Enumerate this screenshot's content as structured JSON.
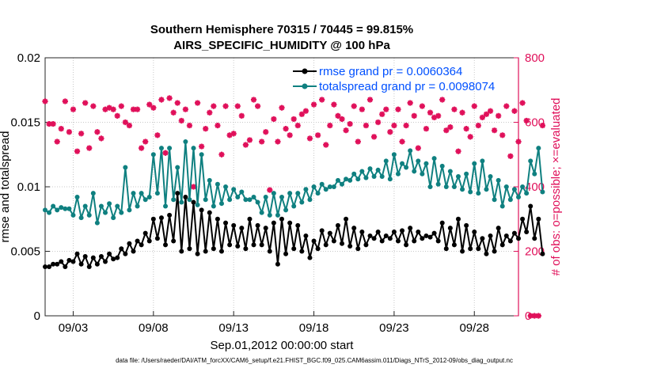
{
  "chart_data": {
    "type": "line",
    "title": "Southern Hemisphere 70315 / 70445 = 99.815%",
    "subtitle": "AIRS_SPECIFIC_HUMIDITY @ 100 hPa",
    "xlabel": "Sep.01,2012 00:00:00 start",
    "ylabel": "rmse and totalspread",
    "ylabel_right": "# of obs: o=possible; ×=evaluated",
    "footer": "data file: /Users/raeder/DAI/ATM_forcXX/CAM6_setup/f.e21.FHIST_BGC.f09_025.CAM6assim.011/Diags_NTrS_2012-09/obs_diag_output.nc",
    "xlim": [
      1.25,
      30.75
    ],
    "ylim": [
      0,
      0.02
    ],
    "ylim_right": [
      0,
      800
    ],
    "x_ticks": [
      3,
      8,
      13,
      18,
      23,
      28
    ],
    "x_tick_labels": [
      "09/03",
      "09/08",
      "09/13",
      "09/18",
      "09/23",
      "09/28"
    ],
    "y_ticks": [
      0,
      0.005,
      0.01,
      0.015,
      0.02
    ],
    "y_tick_labels": [
      "0",
      "0.005",
      "0.01",
      "0.015",
      "0.02"
    ],
    "y_right_ticks": [
      0,
      200,
      400,
      600,
      800
    ],
    "y_right_tick_labels": [
      "0",
      "200",
      "400",
      "600",
      "800"
    ],
    "x_start": 1.25,
    "x_step": 0.25,
    "series": [
      {
        "name": "rmse grand pr = 0.0060364",
        "color": "#000000",
        "values": [
          0.0038,
          0.0038,
          0.004,
          0.004,
          0.0042,
          0.0038,
          0.0043,
          0.0042,
          0.0048,
          0.004,
          0.0046,
          0.0038,
          0.0045,
          0.004,
          0.0046,
          0.0042,
          0.0048,
          0.0044,
          0.0045,
          0.0052,
          0.0048,
          0.0056,
          0.005,
          0.0058,
          0.0055,
          0.0064,
          0.0058,
          0.0075,
          0.006,
          0.0076,
          0.0055,
          0.0078,
          0.0058,
          0.0095,
          0.005,
          0.0092,
          0.0052,
          0.0088,
          0.0048,
          0.0082,
          0.005,
          0.008,
          0.0052,
          0.0075,
          0.005,
          0.0072,
          0.0055,
          0.007,
          0.0054,
          0.0068,
          0.0052,
          0.0075,
          0.0055,
          0.007,
          0.0055,
          0.0068,
          0.005,
          0.0072,
          0.004,
          0.0075,
          0.0048,
          0.0072,
          0.0052,
          0.007,
          0.005,
          0.0062,
          0.0045,
          0.0058,
          0.0052,
          0.0066,
          0.0055,
          0.0064,
          0.0058,
          0.007,
          0.0056,
          0.0075,
          0.0054,
          0.0068,
          0.0052,
          0.0065,
          0.0055,
          0.0062,
          0.006,
          0.0065,
          0.0058,
          0.0062,
          0.006,
          0.0065,
          0.0058,
          0.0066,
          0.0055,
          0.0068,
          0.0058,
          0.0065,
          0.006,
          0.0062,
          0.0061,
          0.0064,
          0.0058,
          0.0072,
          0.0052,
          0.0068,
          0.0055,
          0.0075,
          0.005,
          0.007,
          0.0052,
          0.0065,
          0.0052,
          0.006,
          0.0048,
          0.0062,
          0.005,
          0.0068,
          0.0055,
          0.0062,
          0.0058,
          0.0064,
          0.006,
          0.0075,
          0.0065,
          0.0085,
          0.006,
          0.0075,
          0.0048
        ]
      },
      {
        "name": "totalspread grand pr = 0.0098074",
        "color": "#0f8080",
        "values": [
          0.0082,
          0.008,
          0.0085,
          0.0082,
          0.0084,
          0.0083,
          0.0083,
          0.0078,
          0.0092,
          0.0076,
          0.0085,
          0.0078,
          0.0095,
          0.0072,
          0.0085,
          0.008,
          0.0087,
          0.0076,
          0.0085,
          0.008,
          0.0115,
          0.0082,
          0.0095,
          0.0085,
          0.0095,
          0.009,
          0.0092,
          0.0125,
          0.0095,
          0.013,
          0.0085,
          0.013,
          0.009,
          0.0115,
          0.0088,
          0.0135,
          0.009,
          0.013,
          0.0086,
          0.0125,
          0.009,
          0.0105,
          0.0085,
          0.0102,
          0.0087,
          0.01,
          0.009,
          0.0098,
          0.0092,
          0.0096,
          0.009,
          0.009,
          0.0092,
          0.0088,
          0.008,
          0.0092,
          0.0078,
          0.0095,
          0.0078,
          0.0092,
          0.0082,
          0.0095,
          0.0085,
          0.0095,
          0.0088,
          0.0098,
          0.009,
          0.01,
          0.0095,
          0.0102,
          0.0098,
          0.01,
          0.01,
          0.0105,
          0.0102,
          0.0106,
          0.0105,
          0.011,
          0.0106,
          0.0112,
          0.0107,
          0.0114,
          0.0108,
          0.0113,
          0.0108,
          0.012,
          0.0106,
          0.0125,
          0.011,
          0.0118,
          0.0115,
          0.0128,
          0.0112,
          0.012,
          0.011,
          0.0118,
          0.01,
          0.0122,
          0.0102,
          0.0116,
          0.01,
          0.0112,
          0.01,
          0.0108,
          0.0098,
          0.011,
          0.0096,
          0.0118,
          0.0095,
          0.012,
          0.0098,
          0.0108,
          0.009,
          0.0105,
          0.0085,
          0.01,
          0.009,
          0.0098,
          0.0092,
          0.01,
          0.0095,
          0.012,
          0.011,
          0.013,
          0.0096
        ]
      }
    ],
    "obs_evaluated": {
      "name": "# of obs evaluated",
      "color": "#e0105a",
      "values": [
        665,
        595,
        595,
        540,
        580,
        665,
        570,
        640,
        510,
        565,
        660,
        520,
        650,
        570,
        550,
        640,
        645,
        640,
        620,
        650,
        600,
        590,
        640,
        640,
        520,
        540,
        655,
        645,
        560,
        670,
        505,
        675,
        630,
        660,
        605,
        640,
        590,
        400,
        660,
        525,
        580,
        630,
        650,
        590,
        500,
        650,
        560,
        565,
        650,
        620,
        530,
        545,
        670,
        650,
        540,
        570,
        390,
        610,
        540,
        645,
        580,
        560,
        610,
        590,
        625,
        635,
        550,
        655,
        560,
        670,
        530,
        590,
        655,
        620,
        610,
        575,
        595,
        650,
        540,
        640,
        590,
        670,
        555,
        600,
        625,
        640,
        570,
        590,
        640,
        540,
        590,
        660,
        620,
        520,
        650,
        580,
        630,
        615,
        620,
        670,
        575,
        585,
        640,
        510,
        630,
        580,
        555,
        650,
        590,
        615,
        625,
        635,
        575,
        620,
        560,
        650,
        495,
        635,
        540,
        660,
        605,
        0,
        0,
        0,
        590
      ]
    }
  }
}
